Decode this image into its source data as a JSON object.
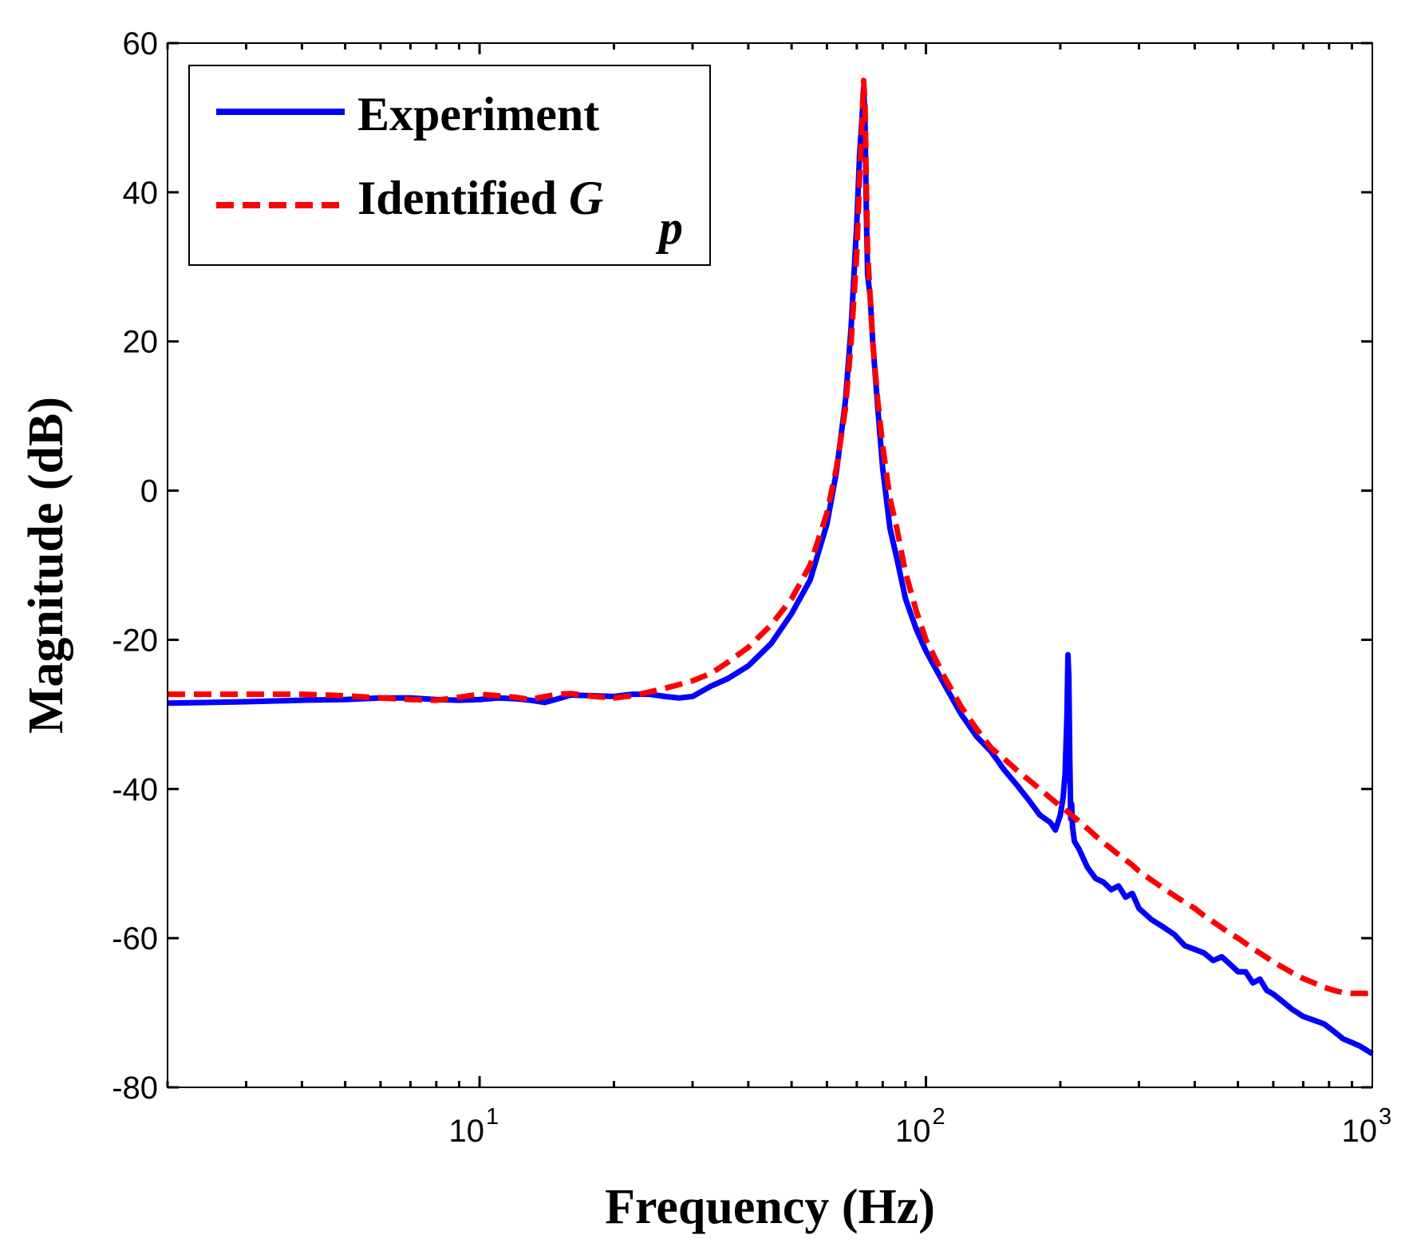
{
  "chart_data": {
    "type": "line",
    "title": "",
    "xlabel": "Frequency (Hz)",
    "ylabel": "Magnitude (dB)",
    "xscale": "log",
    "xlim": [
      2,
      1000
    ],
    "ylim": [
      -80,
      60
    ],
    "grid": false,
    "legend_position": "top-left",
    "x_ticks": [
      {
        "value": 10,
        "base": "10",
        "exp": "1"
      },
      {
        "value": 100,
        "base": "10",
        "exp": "2"
      },
      {
        "value": 1000,
        "base": "10",
        "exp": "3"
      }
    ],
    "y_ticks": [
      {
        "value": 60,
        "label": "60"
      },
      {
        "value": 40,
        "label": "40"
      },
      {
        "value": 20,
        "label": "20"
      },
      {
        "value": 0,
        "label": "0"
      },
      {
        "value": -20,
        "label": "-20"
      },
      {
        "value": -40,
        "label": "-40"
      },
      {
        "value": -60,
        "label": "-60"
      },
      {
        "value": -80,
        "label": "-80"
      }
    ],
    "series": [
      {
        "name": "Experiment",
        "color": "#0000ff",
        "style": "solid",
        "x": [
          2,
          3,
          4,
          5,
          6,
          7,
          8,
          9,
          10,
          11,
          12,
          13,
          14,
          15,
          16,
          18,
          20,
          22,
          24,
          26,
          28,
          30,
          33,
          36,
          40,
          45,
          50,
          55,
          60,
          63,
          66,
          68,
          70,
          71,
          72,
          72.5,
          73,
          73.5,
          74,
          75,
          76,
          78,
          80,
          83,
          86,
          90,
          95,
          100,
          110,
          120,
          130,
          140,
          150,
          160,
          170,
          180,
          190,
          195,
          200,
          203,
          205,
          207,
          208,
          209,
          210,
          211,
          212,
          213,
          215,
          220,
          230,
          240,
          250,
          260,
          270,
          280,
          290,
          300,
          320,
          340,
          360,
          380,
          400,
          420,
          440,
          460,
          480,
          500,
          520,
          540,
          560,
          580,
          600,
          630,
          660,
          700,
          740,
          780,
          820,
          860,
          900,
          940,
          970,
          1000
        ],
        "y": [
          -28.5,
          -28.3,
          -28.1,
          -28.0,
          -27.8,
          -27.8,
          -28.0,
          -28.1,
          -28.0,
          -27.8,
          -27.9,
          -28.1,
          -28.4,
          -27.9,
          -27.4,
          -27.5,
          -27.6,
          -27.3,
          -27.3,
          -27.6,
          -27.8,
          -27.6,
          -26.2,
          -25.2,
          -23.5,
          -20.5,
          -16.5,
          -12.0,
          -4.5,
          2.5,
          12.0,
          22.0,
          36.0,
          45.0,
          50.5,
          54.0,
          50.0,
          38.0,
          29.0,
          26.0,
          20.0,
          11.0,
          3.0,
          -5.0,
          -9.0,
          -14.5,
          -18.5,
          -21.5,
          -26.0,
          -30.0,
          -33.0,
          -35.0,
          -37.5,
          -39.5,
          -41.5,
          -43.5,
          -44.5,
          -45.5,
          -43.5,
          -41.0,
          -38.0,
          -30.0,
          -22.0,
          -25.0,
          -36.0,
          -44.0,
          -42.0,
          -45.0,
          -47.0,
          -48.0,
          -50.5,
          -52.0,
          -52.5,
          -53.5,
          -53.0,
          -54.5,
          -54.0,
          -56.0,
          -57.5,
          -58.5,
          -59.5,
          -61.0,
          -61.5,
          -62.0,
          -63.0,
          -62.5,
          -63.5,
          -64.5,
          -64.5,
          -66.0,
          -65.5,
          -67.0,
          -67.5,
          -68.5,
          -69.5,
          -70.5,
          -71.0,
          -71.5,
          -72.5,
          -73.5,
          -74.0,
          -74.5,
          -75.0,
          -75.5
        ]
      },
      {
        "name": "Identified Gp",
        "color": "#ff0000",
        "style": "dashed",
        "x": [
          2,
          3,
          4,
          5,
          6,
          7,
          8,
          9,
          10,
          11,
          12,
          13,
          14,
          15,
          16,
          18,
          20,
          22,
          24,
          26,
          28,
          30,
          33,
          36,
          40,
          45,
          50,
          55,
          60,
          63,
          66,
          68,
          70,
          71,
          72,
          72.5,
          73,
          73.5,
          74,
          75,
          76,
          78,
          80,
          83,
          86,
          90,
          95,
          100,
          110,
          120,
          130,
          140,
          150,
          160,
          170,
          180,
          190,
          200,
          210,
          220,
          230,
          240,
          250,
          260,
          270,
          280,
          290,
          300,
          320,
          340,
          360,
          380,
          400,
          420,
          440,
          460,
          480,
          500,
          520,
          540,
          560,
          580,
          600,
          630,
          660,
          700,
          740,
          780,
          820,
          860,
          900,
          940,
          970,
          1000
        ],
        "y": [
          -27.3,
          -27.3,
          -27.3,
          -27.5,
          -27.8,
          -28.0,
          -28.1,
          -27.7,
          -27.3,
          -27.5,
          -27.7,
          -28.0,
          -27.6,
          -27.3,
          -27.2,
          -27.6,
          -27.8,
          -27.5,
          -27.0,
          -26.5,
          -26.0,
          -25.5,
          -24.5,
          -23.0,
          -21.0,
          -18.0,
          -14.5,
          -10.0,
          -3.0,
          3.0,
          11.0,
          20.0,
          32.0,
          42.0,
          50.0,
          55.0,
          52.0,
          42.0,
          32.0,
          26.0,
          20.0,
          12.0,
          6.0,
          -1.0,
          -5.0,
          -11.0,
          -16.0,
          -20.0,
          -25.0,
          -29.0,
          -32.0,
          -34.5,
          -36.0,
          -37.5,
          -38.8,
          -40.0,
          -41.2,
          -42.3,
          -43.3,
          -44.3,
          -45.3,
          -46.3,
          -47.2,
          -48.0,
          -48.8,
          -49.5,
          -50.2,
          -51.0,
          -52.2,
          -53.3,
          -54.3,
          -55.2,
          -56.0,
          -57.0,
          -57.8,
          -58.6,
          -59.4,
          -60.0,
          -60.7,
          -61.4,
          -62.0,
          -62.6,
          -63.2,
          -63.9,
          -64.6,
          -65.4,
          -66.0,
          -66.6,
          -67.0,
          -67.3,
          -67.4,
          -67.4,
          -67.4,
          -67.3
        ]
      }
    ],
    "legend": [
      {
        "text": "Experiment",
        "color": "#0000ff",
        "style": "solid"
      },
      {
        "text_main": "Identified ",
        "symbol": "G",
        "subscript": "p",
        "color": "#ff0000",
        "style": "dashed"
      }
    ]
  }
}
